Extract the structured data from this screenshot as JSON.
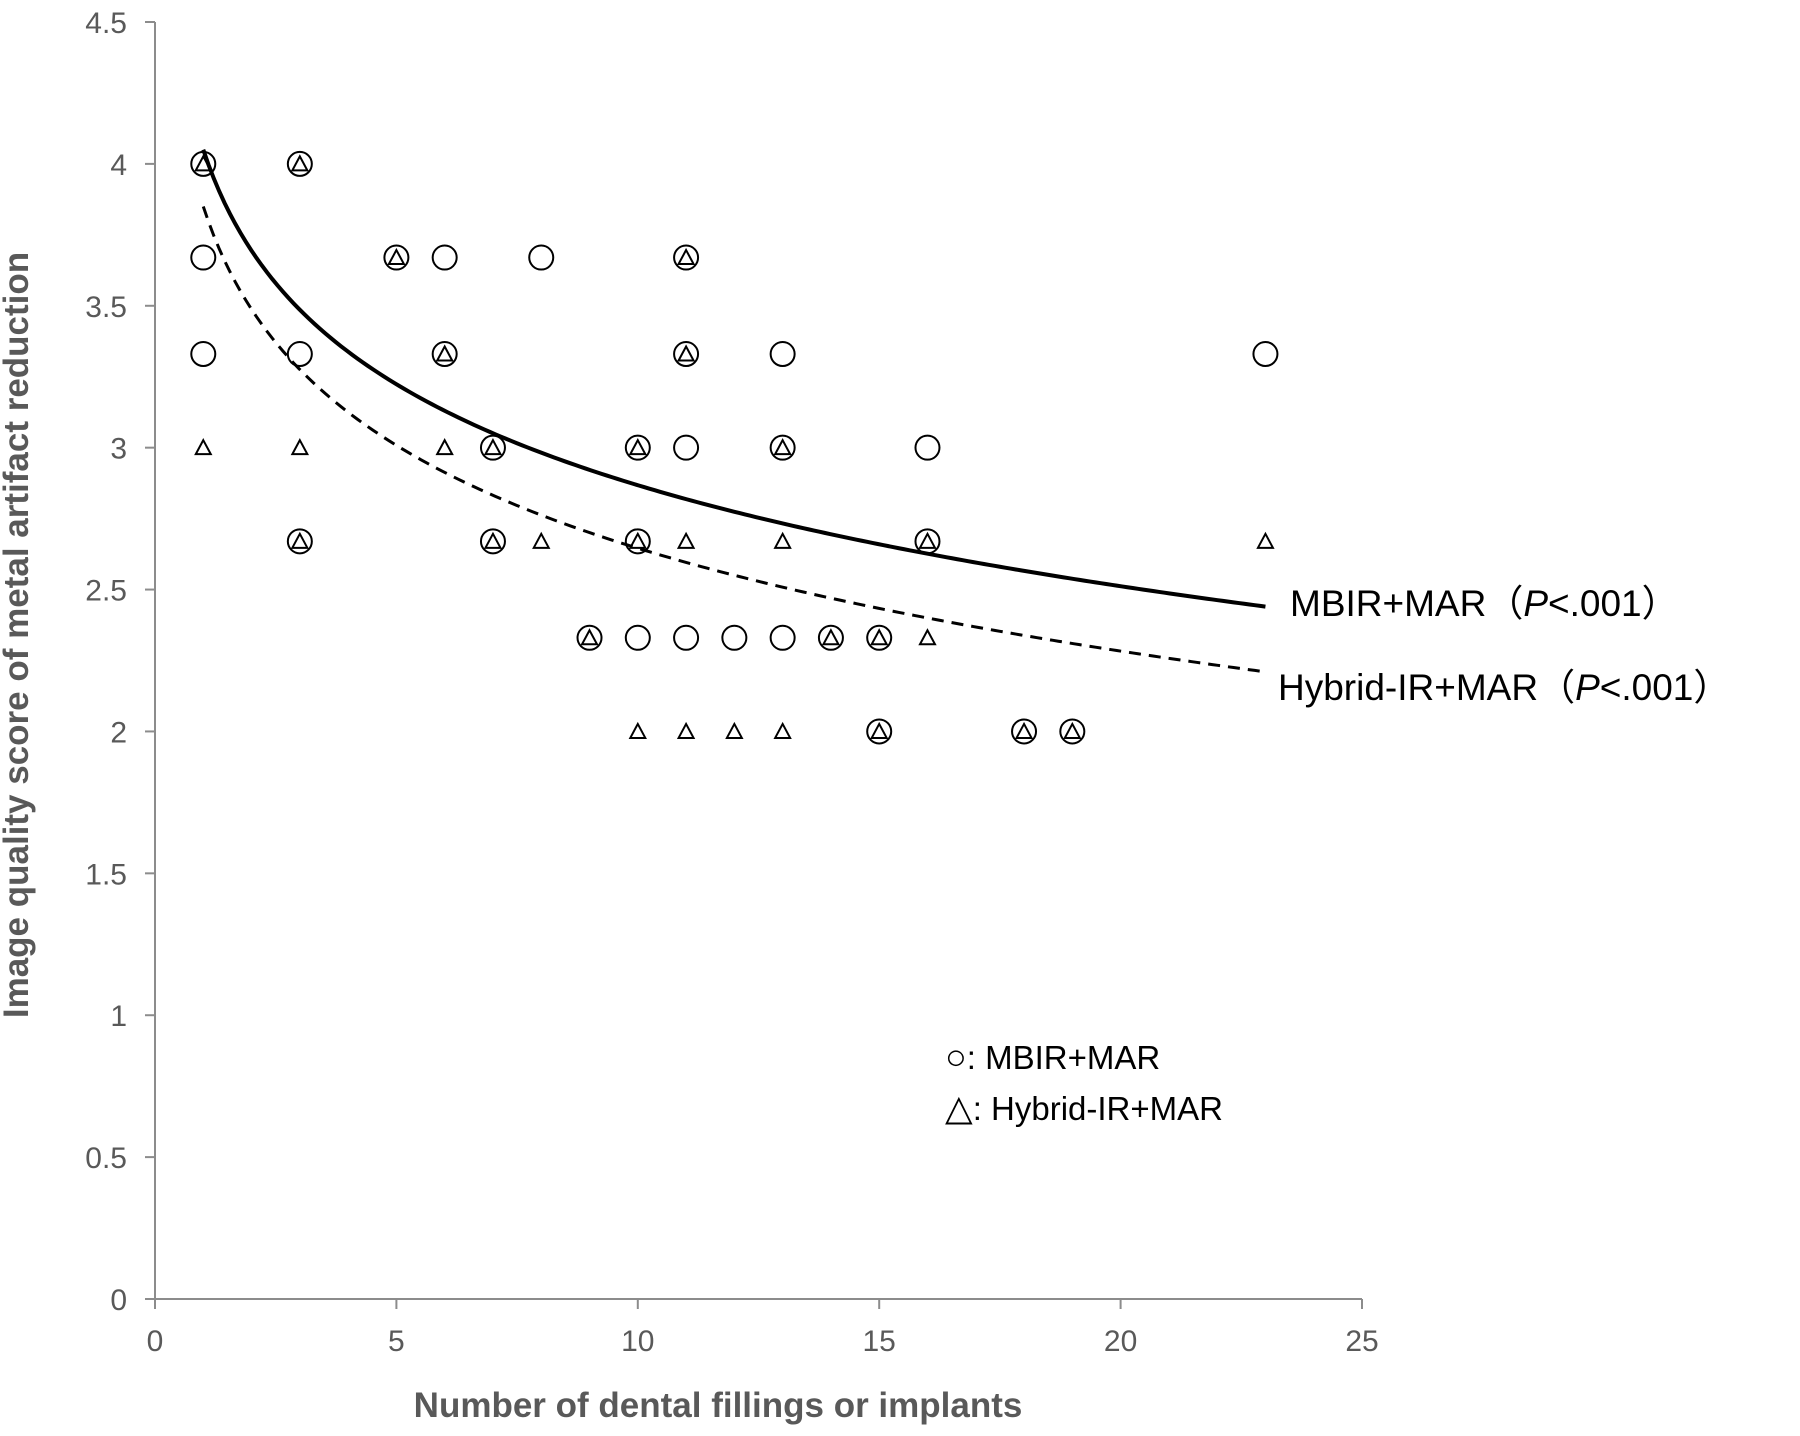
{
  "chart_data": {
    "type": "scatter",
    "xlabel": "Number of dental fillings or implants",
    "ylabel": "Image quality score of metal artifact reduction",
    "xlim": [
      0,
      25
    ],
    "ylim": [
      0,
      4.5
    ],
    "x_ticks": [
      "0",
      "5",
      "10",
      "15",
      "20",
      "25"
    ],
    "y_ticks": [
      "0",
      "0.5",
      "1",
      "1.5",
      "2",
      "2.5",
      "3",
      "3.5",
      "4",
      "4.5"
    ],
    "grid": false,
    "legend_position": "bottom-right",
    "legend": [
      {
        "marker": "○",
        "label": ": MBIR+MAR"
      },
      {
        "marker": "△",
        "label": ": Hybrid-IR+MAR"
      }
    ],
    "series": [
      {
        "name": "MBIR+MAR",
        "marker": "circle",
        "points": [
          [
            1,
            4.0
          ],
          [
            1,
            3.67
          ],
          [
            1,
            3.33
          ],
          [
            3,
            4.0
          ],
          [
            3,
            3.33
          ],
          [
            3,
            2.67
          ],
          [
            5,
            3.67
          ],
          [
            6,
            3.67
          ],
          [
            6,
            3.33
          ],
          [
            7,
            3.0
          ],
          [
            7,
            2.67
          ],
          [
            8,
            3.67
          ],
          [
            9,
            2.33
          ],
          [
            10,
            3.0
          ],
          [
            10,
            2.67
          ],
          [
            10,
            2.33
          ],
          [
            11,
            3.67
          ],
          [
            11,
            3.33
          ],
          [
            11,
            3.0
          ],
          [
            11,
            2.33
          ],
          [
            12,
            2.33
          ],
          [
            13,
            3.33
          ],
          [
            13,
            3.0
          ],
          [
            13,
            2.33
          ],
          [
            14,
            2.33
          ],
          [
            15,
            2.33
          ],
          [
            15,
            2.0
          ],
          [
            16,
            3.0
          ],
          [
            16,
            2.67
          ],
          [
            18,
            2.0
          ],
          [
            19,
            2.0
          ],
          [
            23,
            3.33
          ]
        ],
        "fit": {
          "type": "logarithmic",
          "x_range": [
            1,
            23
          ],
          "y_at_start": 4.05,
          "y_at_end": 2.44,
          "style": "solid"
        },
        "annotation": {
          "label": "MBIR+MAR（",
          "p_symbol": "P",
          "p_value": "<.001）"
        }
      },
      {
        "name": "Hybrid-IR+MAR",
        "marker": "triangle",
        "points": [
          [
            1,
            4.0
          ],
          [
            1,
            3.0
          ],
          [
            3,
            4.0
          ],
          [
            3,
            3.0
          ],
          [
            3,
            2.67
          ],
          [
            5,
            3.67
          ],
          [
            6,
            3.33
          ],
          [
            6,
            3.0
          ],
          [
            7,
            3.0
          ],
          [
            7,
            2.67
          ],
          [
            8,
            2.67
          ],
          [
            9,
            2.33
          ],
          [
            10,
            3.0
          ],
          [
            10,
            2.67
          ],
          [
            10,
            2.0
          ],
          [
            11,
            3.67
          ],
          [
            11,
            3.33
          ],
          [
            11,
            2.67
          ],
          [
            11,
            2.0
          ],
          [
            12,
            2.0
          ],
          [
            13,
            3.0
          ],
          [
            13,
            2.67
          ],
          [
            13,
            2.0
          ],
          [
            14,
            2.33
          ],
          [
            15,
            2.33
          ],
          [
            15,
            2.0
          ],
          [
            16,
            2.67
          ],
          [
            16,
            2.33
          ],
          [
            18,
            2.0
          ],
          [
            19,
            2.0
          ],
          [
            23,
            2.67
          ]
        ],
        "fit": {
          "type": "logarithmic",
          "x_range": [
            1,
            23
          ],
          "y_at_start": 3.85,
          "y_at_end": 2.21,
          "style": "dashed"
        },
        "annotation": {
          "label": "Hybrid-IR+MAR（",
          "p_symbol": "P",
          "p_value": "<.001）"
        }
      }
    ]
  }
}
